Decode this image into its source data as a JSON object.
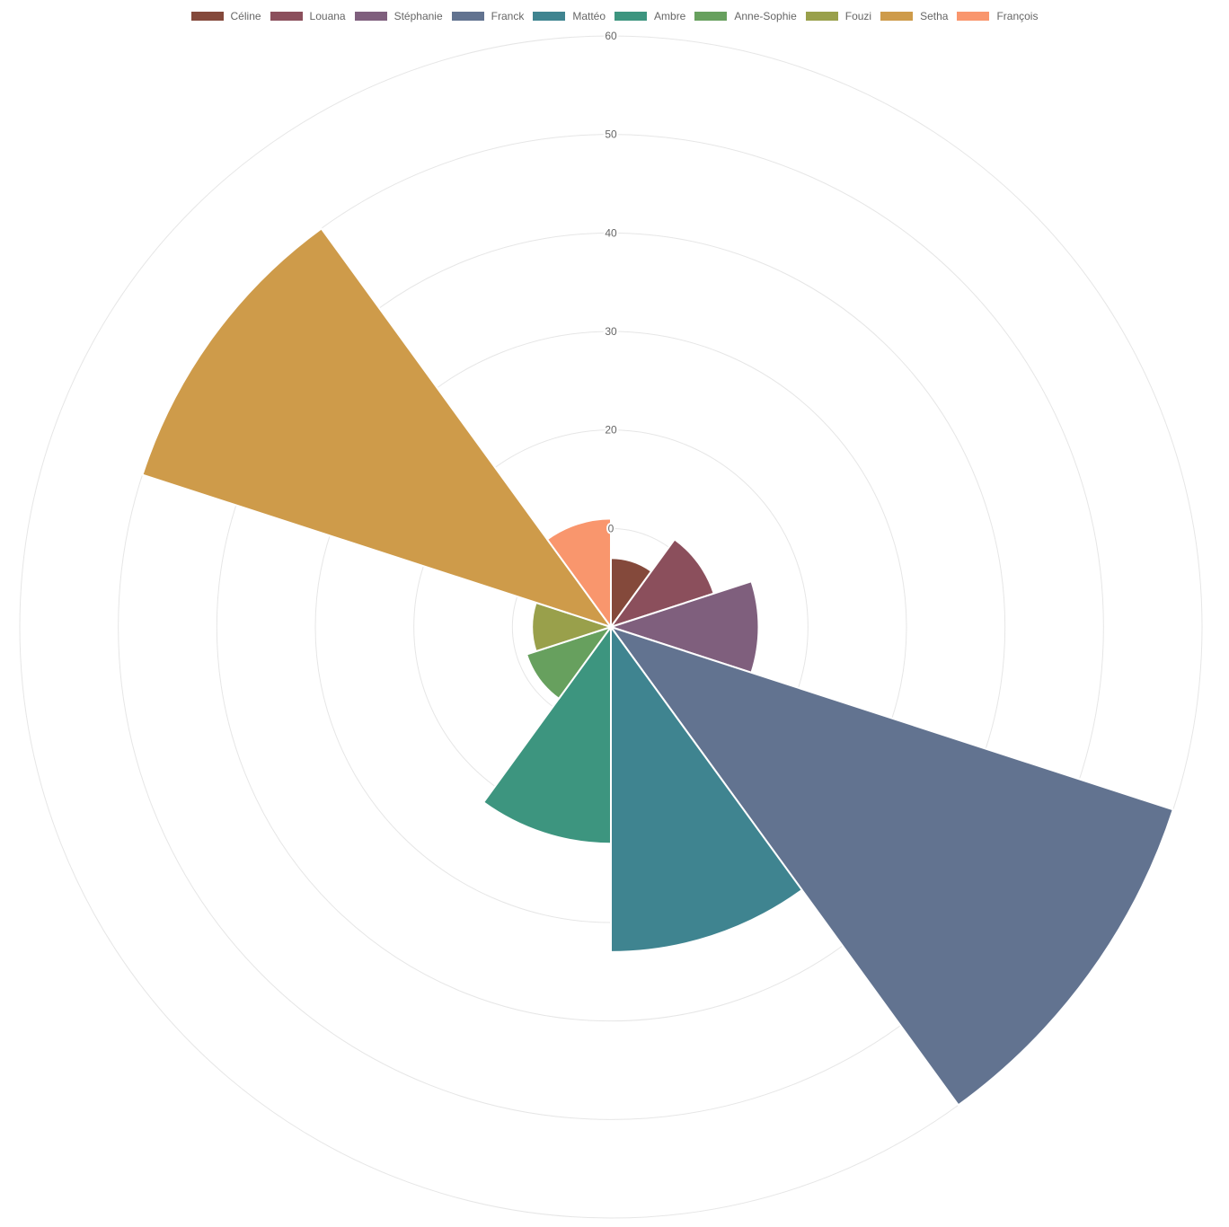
{
  "chart_data": {
    "type": "polarArea",
    "categories": [
      "Céline",
      "Louana",
      "Stéphanie",
      "Franck",
      "Mattéo",
      "Ambre",
      "Anne-Sophie",
      "Fouzi",
      "Setha",
      "François"
    ],
    "values": [
      7,
      11,
      15,
      60,
      33,
      22,
      9,
      8,
      50,
      11
    ],
    "colors": [
      "#84493b",
      "#8b4f5c",
      "#7f5f7d",
      "#627390",
      "#3f8490",
      "#3d957f",
      "#67a05e",
      "#99a04b",
      "#ce9b4a",
      "#f9966d"
    ],
    "radial_ticks": [
      "0",
      "20",
      "30",
      "40",
      "50",
      "60"
    ],
    "rlim": [
      0,
      60
    ],
    "legend_position": "top",
    "grid": true
  }
}
